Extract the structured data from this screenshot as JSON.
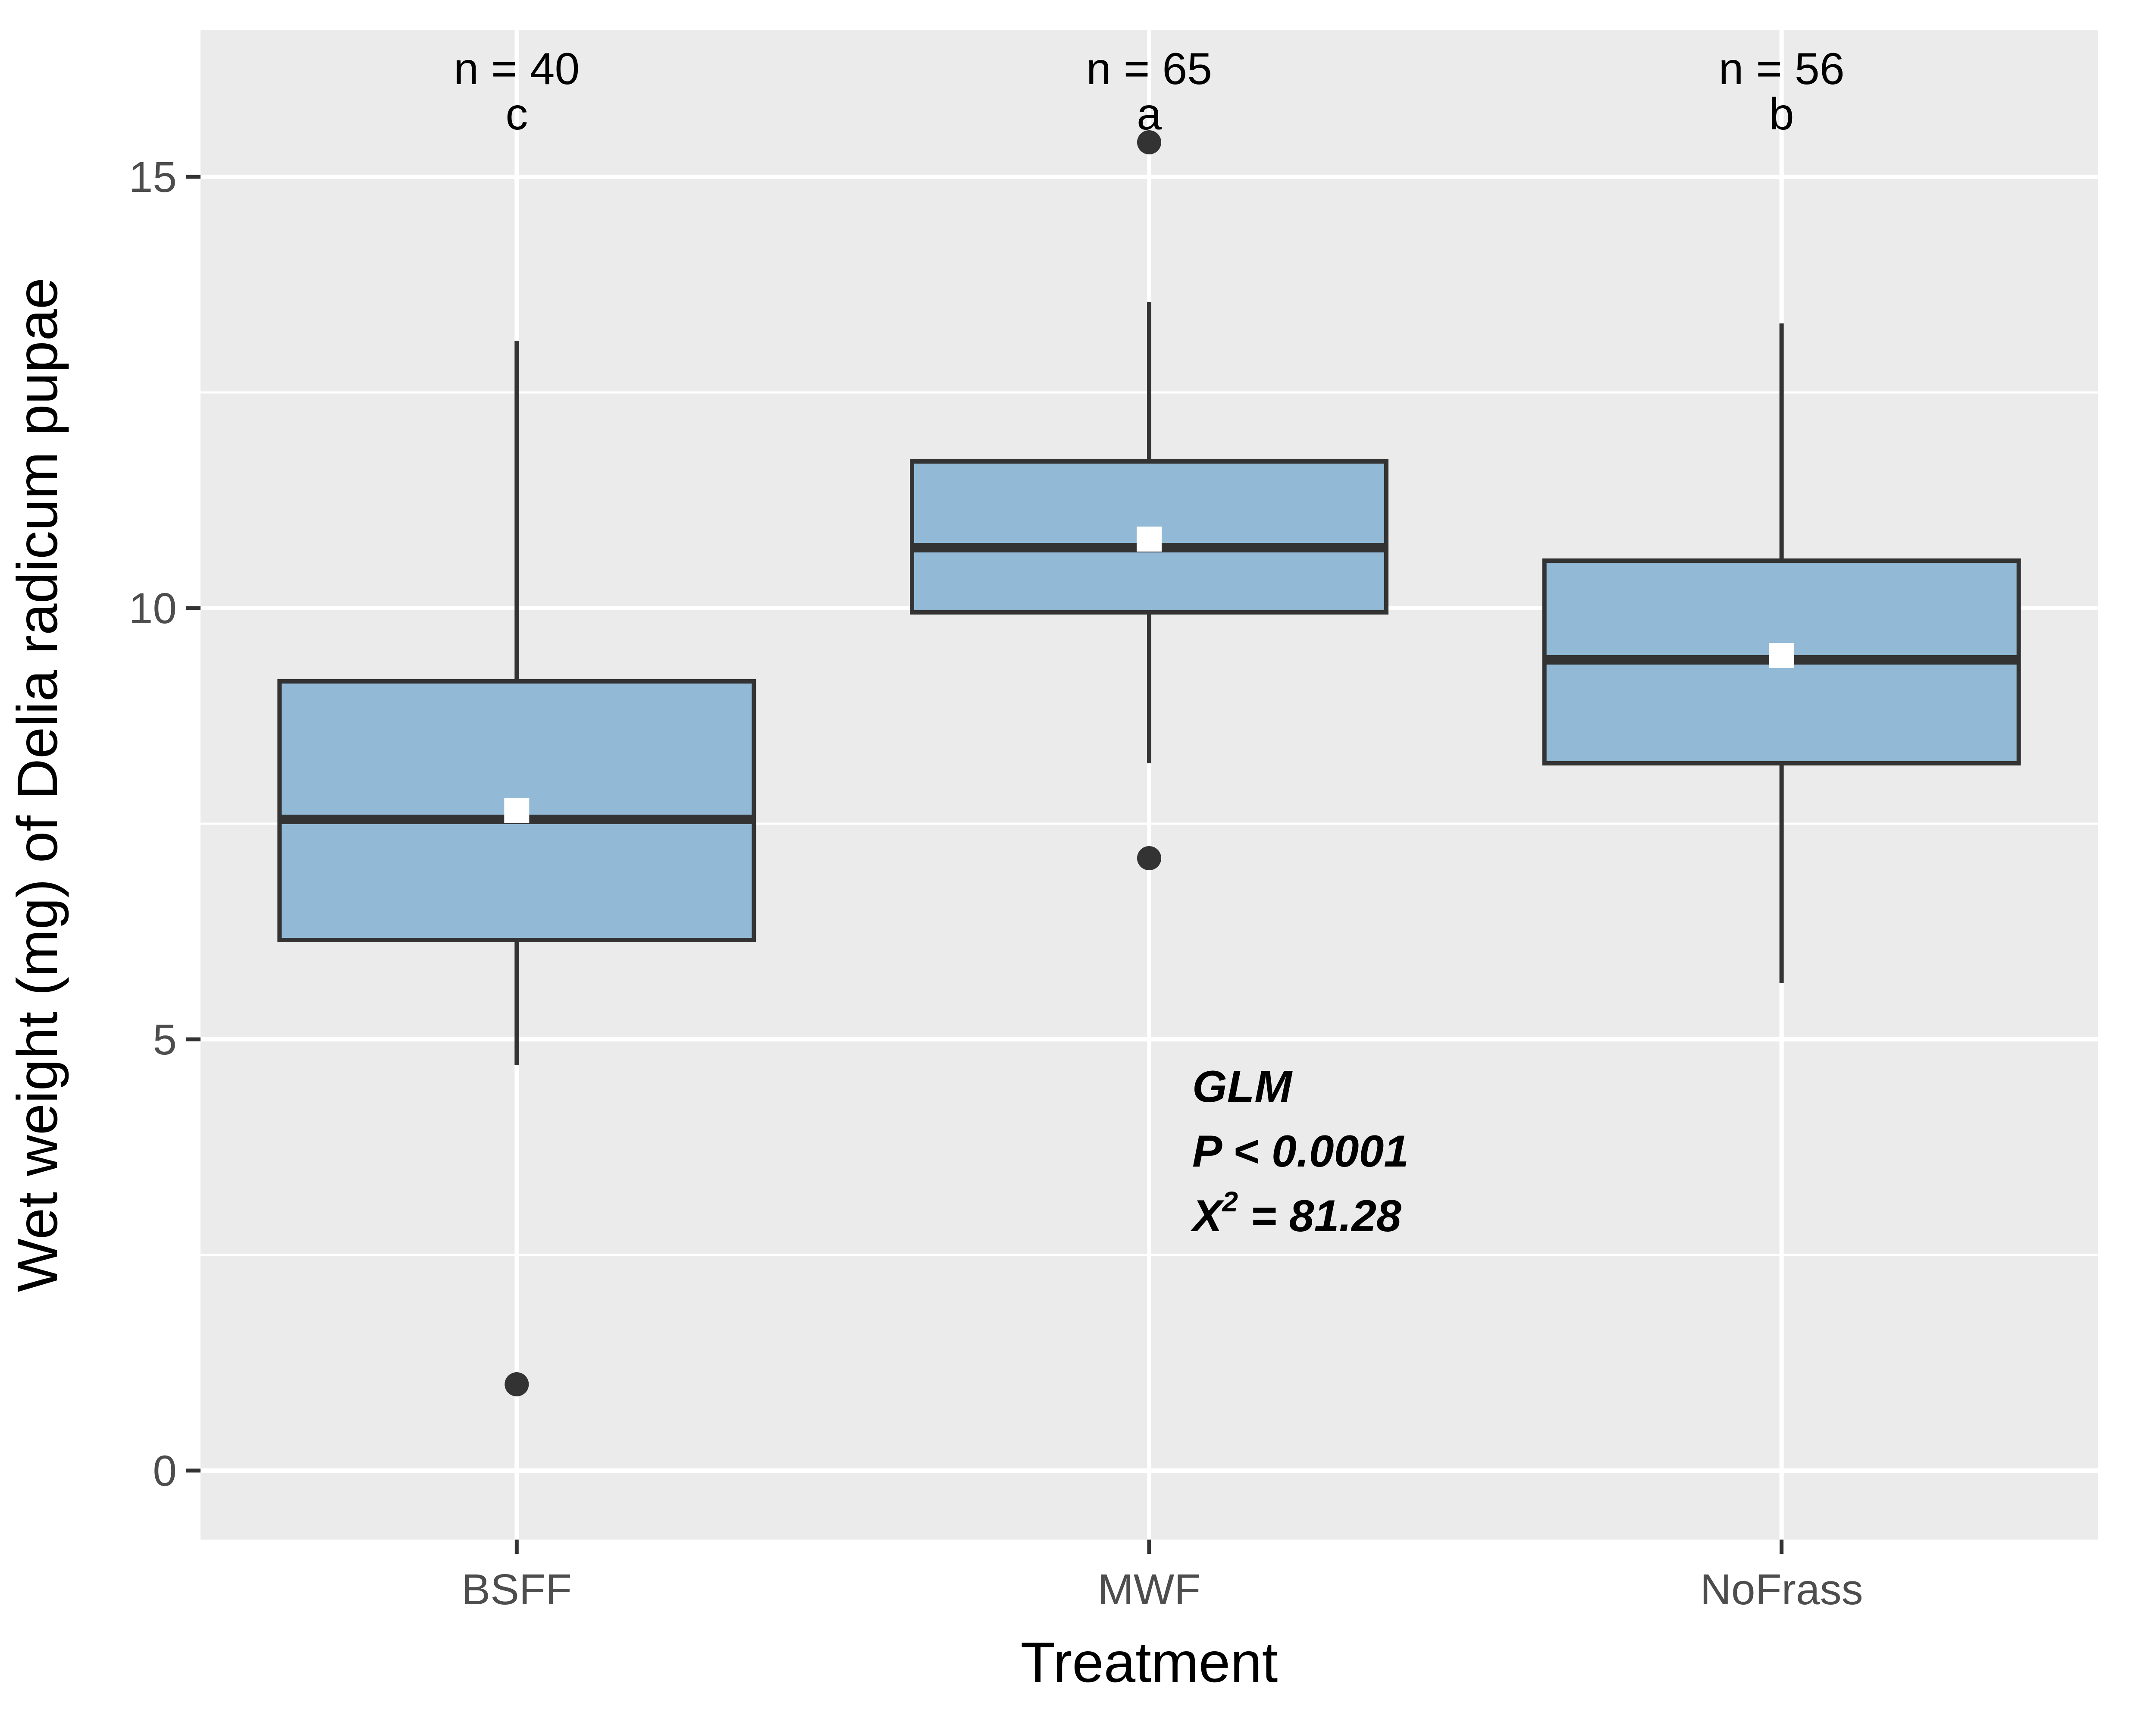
{
  "colors": {
    "panel_bg": "#ebebeb",
    "grid": "#ffffff",
    "box_fill": "#92b9d6",
    "box_stroke": "#333333",
    "mean_marker": "#ffffff",
    "tick": "#333333",
    "tick_label": "#4d4d4d"
  },
  "chart_data": {
    "type": "box",
    "title": "",
    "xlabel": "Treatment",
    "ylabel": "Wet weight (mg) of Delia radicum pupae",
    "ylim": [
      -0.8,
      16.7
    ],
    "yticks": [
      0,
      5,
      10,
      15
    ],
    "ytick_labels": [
      "0",
      "5",
      "10",
      "15"
    ],
    "minor_y": [
      2.5,
      7.5,
      12.5
    ],
    "grid": true,
    "categories": [
      "BSFF",
      "MWF",
      "NoFrass"
    ],
    "boxes": [
      {
        "name": "BSFF",
        "whisker_low": 4.7,
        "q1": 6.15,
        "median": 7.55,
        "q3": 9.15,
        "whisker_high": 13.1,
        "mean": 7.65,
        "outliers": [
          1.0
        ],
        "n_label": "n = 40",
        "group_letter": "c"
      },
      {
        "name": "MWF",
        "whisker_low": 8.2,
        "q1": 9.95,
        "median": 10.7,
        "q3": 11.7,
        "whisker_high": 13.55,
        "mean": 10.8,
        "outliers": [
          15.4,
          7.1
        ],
        "n_label": "n = 65",
        "group_letter": "a"
      },
      {
        "name": "NoFrass",
        "whisker_low": 5.65,
        "q1": 8.2,
        "median": 9.4,
        "q3": 10.55,
        "whisker_high": 13.3,
        "mean": 9.45,
        "outliers": [],
        "n_label": "n = 56",
        "group_letter": "b"
      }
    ],
    "annotation": {
      "line1": "GLM",
      "line2": "P < 0.0001",
      "line3_prefix": "X",
      "line3_sup": "2",
      "line3_suffix": " = 81.28"
    }
  }
}
